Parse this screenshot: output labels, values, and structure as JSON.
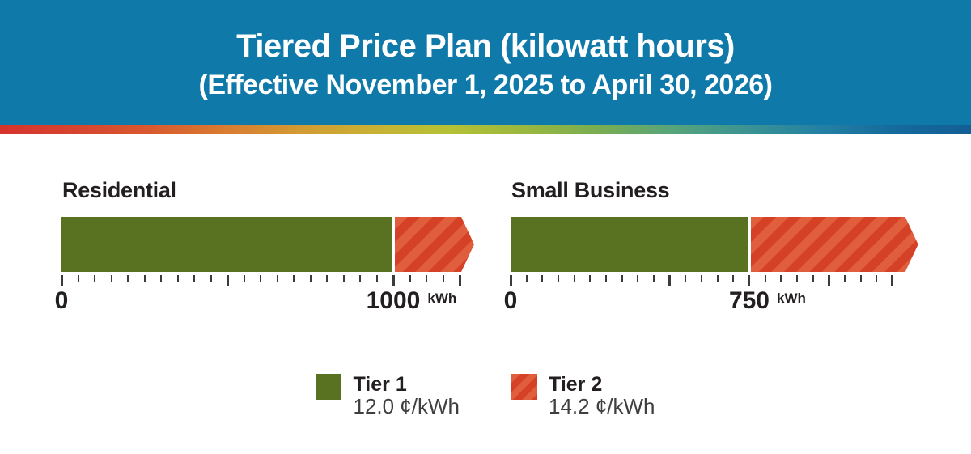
{
  "header": {
    "title": "Tiered Price Plan (kilowatt hours)",
    "subtitle": "(Effective November 1, 2025 to April 30, 2026)"
  },
  "colors": {
    "header_bg": "#0f7aa9",
    "tier1_green": "#587221",
    "tier2_red_dark": "#d54127",
    "tier2_red_light": "#e05e3b",
    "text_dark": "#231f20",
    "price_text": "#3f3f3f",
    "tick": "#3c3c3c",
    "divider_gradient": [
      "#d6332c",
      "#d64430",
      "#d8592f",
      "#d97b31",
      "#d29b33",
      "#c9b135",
      "#b5c135",
      "#9ab83f",
      "#79ad52",
      "#57a47b",
      "#3b9393",
      "#2380a4",
      "#15699c",
      "#135f95"
    ]
  },
  "chart_data": [
    {
      "type": "bar",
      "title": "Residential",
      "unit": "kWh",
      "tier1_limit_kwh": 1000,
      "bar_total_kwh": 1205,
      "tier_prices_cents_per_kwh": {
        "tier1": 12.0,
        "tier2": 14.2
      },
      "axis": {
        "min": 0,
        "max": 1200,
        "tick_step": 50,
        "major_ticks": [
          0,
          500,
          1000,
          1200
        ],
        "labeled_ticks": [
          {
            "value": 0,
            "label": "0",
            "unit": ""
          },
          {
            "value": 1000,
            "label": "1000",
            "unit": "kWh"
          }
        ]
      }
    },
    {
      "type": "bar",
      "title": "Small Business",
      "unit": "kWh",
      "tier1_limit_kwh": 750,
      "bar_total_kwh": 1240,
      "tier_prices_cents_per_kwh": {
        "tier1": 12.0,
        "tier2": 14.2
      },
      "axis": {
        "min": 0,
        "max": 1200,
        "tick_step": 50,
        "major_ticks": [
          0,
          500,
          750,
          1000,
          1200
        ],
        "labeled_ticks": [
          {
            "value": 0,
            "label": "0",
            "unit": ""
          },
          {
            "value": 750,
            "label": "750",
            "unit": "kWh"
          }
        ]
      }
    }
  ],
  "legend": {
    "items": [
      {
        "name": "Tier 1",
        "price": "12.0 ¢/kWh",
        "swatch": "tier1"
      },
      {
        "name": "Tier 2",
        "price": "14.2 ¢/kWh",
        "swatch": "tier2"
      }
    ]
  }
}
